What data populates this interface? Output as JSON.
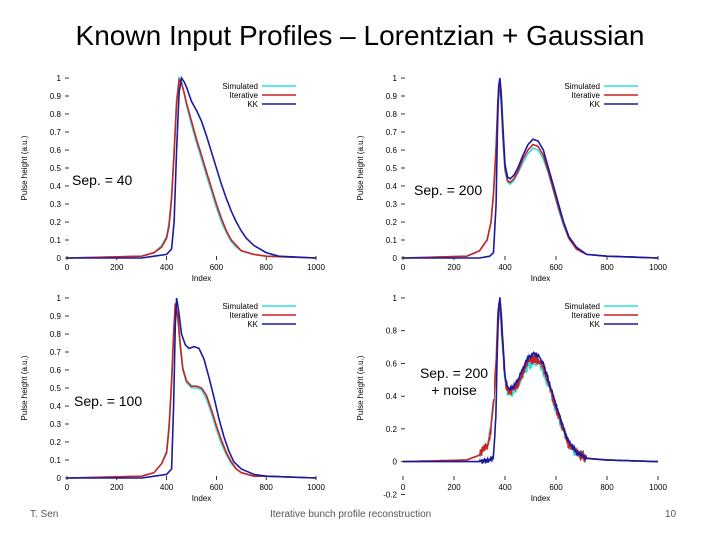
{
  "slide": {
    "title": "Known Input Profiles – Lorentzian + Gaussian",
    "footer_left": "T. Sen",
    "footer_center": "Iterative bunch profile reconstruction",
    "footer_right": "10"
  },
  "chart_data": [
    {
      "type": "line",
      "annotation": "Sep. = 40",
      "xlabel": "Index",
      "ylabel": "Pulse height (a.u.)",
      "xlim": [
        0,
        1000
      ],
      "ylim": [
        0,
        1
      ],
      "xticks": [
        "0",
        "200",
        "400",
        "600",
        "800",
        "1000"
      ],
      "yticks": [
        "0",
        "0.1",
        "0.2",
        "0.3",
        "0.4",
        "0.5",
        "0.6",
        "0.7",
        "0.8",
        "0.9",
        "1"
      ],
      "legend_position": "top-right",
      "noise": false,
      "series": [
        {
          "name": "Simulated",
          "color": "#33dddd",
          "x": [
            0,
            300,
            350,
            380,
            400,
            410,
            420,
            430,
            440,
            450,
            460,
            470,
            480,
            500,
            520,
            540,
            560,
            580,
            600,
            620,
            640,
            660,
            680,
            700,
            750,
            800,
            1000
          ],
          "y": [
            0,
            0.01,
            0.03,
            0.07,
            0.12,
            0.2,
            0.35,
            0.6,
            0.88,
            1,
            0.98,
            0.92,
            0.85,
            0.74,
            0.64,
            0.55,
            0.46,
            0.37,
            0.28,
            0.2,
            0.14,
            0.09,
            0.06,
            0.04,
            0.02,
            0.01,
            0
          ]
        },
        {
          "name": "Iterative",
          "color": "#cc2222",
          "x": [
            0,
            300,
            350,
            380,
            400,
            410,
            420,
            430,
            440,
            450,
            460,
            470,
            480,
            500,
            520,
            540,
            560,
            580,
            600,
            620,
            640,
            660,
            680,
            700,
            750,
            800,
            1000
          ],
          "y": [
            0,
            0.01,
            0.03,
            0.06,
            0.11,
            0.18,
            0.33,
            0.58,
            0.86,
            0.99,
            0.97,
            0.92,
            0.86,
            0.76,
            0.66,
            0.57,
            0.48,
            0.39,
            0.3,
            0.22,
            0.15,
            0.1,
            0.07,
            0.04,
            0.02,
            0.01,
            0
          ]
        },
        {
          "name": "KK",
          "color": "#1a1aa0",
          "x": [
            0,
            300,
            350,
            400,
            420,
            430,
            440,
            450,
            460,
            470,
            480,
            490,
            500,
            520,
            540,
            560,
            580,
            600,
            620,
            640,
            660,
            680,
            700,
            720,
            750,
            800,
            850,
            1000
          ],
          "y": [
            0,
            0,
            0.01,
            0.02,
            0.05,
            0.2,
            0.6,
            0.92,
            1,
            0.98,
            0.95,
            0.91,
            0.87,
            0.82,
            0.76,
            0.68,
            0.59,
            0.5,
            0.41,
            0.33,
            0.26,
            0.2,
            0.15,
            0.11,
            0.07,
            0.03,
            0.01,
            0
          ]
        }
      ]
    },
    {
      "type": "line",
      "annotation": "Sep. = 200",
      "xlabel": "Index",
      "ylabel": "Pulse height (a.u.)",
      "xlim": [
        0,
        1000
      ],
      "ylim": [
        0,
        1
      ],
      "xticks": [
        "0",
        "200",
        "400",
        "600",
        "800",
        "1000"
      ],
      "yticks": [
        "0",
        "0.1",
        "0.2",
        "0.3",
        "0.4",
        "0.5",
        "0.6",
        "0.7",
        "0.8",
        "0.9",
        "1"
      ],
      "legend_position": "top-right",
      "noise": false,
      "series": [
        {
          "name": "Simulated",
          "color": "#33dddd",
          "x": [
            0,
            250,
            300,
            330,
            345,
            355,
            365,
            372,
            378,
            385,
            392,
            400,
            410,
            420,
            435,
            450,
            470,
            490,
            510,
            530,
            550,
            570,
            590,
            610,
            630,
            650,
            680,
            720,
            800,
            1000
          ],
          "y": [
            0,
            0.01,
            0.04,
            0.1,
            0.2,
            0.35,
            0.6,
            0.85,
            0.95,
            0.85,
            0.65,
            0.48,
            0.42,
            0.41,
            0.43,
            0.47,
            0.53,
            0.58,
            0.61,
            0.6,
            0.55,
            0.47,
            0.37,
            0.27,
            0.18,
            0.11,
            0.05,
            0.02,
            0.01,
            0
          ]
        },
        {
          "name": "Iterative",
          "color": "#cc2222",
          "x": [
            0,
            250,
            300,
            330,
            345,
            355,
            365,
            372,
            378,
            385,
            392,
            400,
            410,
            420,
            435,
            450,
            470,
            490,
            510,
            530,
            550,
            570,
            590,
            610,
            630,
            650,
            680,
            720,
            800,
            1000
          ],
          "y": [
            0,
            0.01,
            0.04,
            0.1,
            0.2,
            0.36,
            0.62,
            0.88,
            0.98,
            0.88,
            0.68,
            0.5,
            0.43,
            0.42,
            0.44,
            0.48,
            0.55,
            0.6,
            0.63,
            0.62,
            0.57,
            0.48,
            0.38,
            0.28,
            0.19,
            0.11,
            0.05,
            0.02,
            0.01,
            0
          ]
        },
        {
          "name": "KK",
          "color": "#1a1aa0",
          "x": [
            0,
            300,
            340,
            355,
            365,
            370,
            375,
            380,
            385,
            392,
            400,
            410,
            420,
            435,
            450,
            470,
            490,
            510,
            530,
            550,
            570,
            590,
            610,
            630,
            650,
            680,
            720,
            800,
            1000
          ],
          "y": [
            0,
            0,
            0.01,
            0.03,
            0.3,
            0.7,
            0.95,
            1,
            0.92,
            0.72,
            0.52,
            0.45,
            0.44,
            0.46,
            0.5,
            0.57,
            0.63,
            0.66,
            0.65,
            0.6,
            0.5,
            0.4,
            0.3,
            0.2,
            0.12,
            0.06,
            0.02,
            0.01,
            0
          ]
        }
      ]
    },
    {
      "type": "line",
      "annotation": "Sep. = 100",
      "xlabel": "Index",
      "ylabel": "Pulse height (a.u.)",
      "xlim": [
        0,
        1000
      ],
      "ylim": [
        0,
        1
      ],
      "xticks": [
        "0",
        "200",
        "400",
        "600",
        "800",
        "1000"
      ],
      "yticks": [
        "0",
        "0.1",
        "0.2",
        "0.3",
        "0.4",
        "0.5",
        "0.6",
        "0.7",
        "0.8",
        "0.9",
        "1"
      ],
      "legend_position": "top-right",
      "noise": false,
      "series": [
        {
          "name": "Simulated",
          "color": "#33dddd",
          "x": [
            0,
            300,
            350,
            380,
            400,
            410,
            420,
            428,
            435,
            445,
            455,
            465,
            480,
            500,
            520,
            540,
            560,
            580,
            600,
            620,
            640,
            660,
            680,
            700,
            750,
            800,
            1000
          ],
          "y": [
            0,
            0.01,
            0.03,
            0.08,
            0.15,
            0.3,
            0.55,
            0.8,
            0.95,
            0.88,
            0.72,
            0.6,
            0.53,
            0.5,
            0.5,
            0.49,
            0.44,
            0.36,
            0.27,
            0.19,
            0.13,
            0.08,
            0.05,
            0.03,
            0.01,
            0.01,
            0
          ]
        },
        {
          "name": "Iterative",
          "color": "#cc2222",
          "x": [
            0,
            300,
            350,
            380,
            400,
            410,
            420,
            428,
            435,
            445,
            455,
            465,
            480,
            500,
            520,
            540,
            560,
            580,
            600,
            620,
            640,
            660,
            680,
            700,
            750,
            800,
            1000
          ],
          "y": [
            0,
            0.01,
            0.03,
            0.08,
            0.14,
            0.28,
            0.53,
            0.8,
            0.97,
            0.9,
            0.74,
            0.61,
            0.54,
            0.51,
            0.51,
            0.5,
            0.46,
            0.38,
            0.29,
            0.21,
            0.14,
            0.09,
            0.05,
            0.03,
            0.01,
            0.01,
            0
          ]
        },
        {
          "name": "KK",
          "color": "#1a1aa0",
          "x": [
            0,
            300,
            350,
            400,
            420,
            428,
            435,
            440,
            448,
            460,
            475,
            490,
            510,
            530,
            550,
            570,
            590,
            610,
            630,
            650,
            670,
            700,
            750,
            800,
            1000
          ],
          "y": [
            0,
            0,
            0.01,
            0.02,
            0.05,
            0.4,
            0.85,
            1,
            0.93,
            0.8,
            0.74,
            0.72,
            0.73,
            0.72,
            0.66,
            0.56,
            0.45,
            0.33,
            0.23,
            0.15,
            0.09,
            0.05,
            0.02,
            0.01,
            0
          ]
        }
      ]
    },
    {
      "type": "line",
      "annotation": "Sep. = 200\n+ noise",
      "xlabel": "Index",
      "ylabel": "Pulse height (a.u.)",
      "xlim": [
        0,
        1000
      ],
      "ylim": [
        -0.1,
        1
      ],
      "xticks": [
        "0",
        "200",
        "400",
        "600",
        "800",
        "1000"
      ],
      "yticks": [
        "-0.2",
        "0",
        "0.2",
        "0.4",
        "0.6",
        "0.8",
        "1"
      ],
      "legend_position": "top-right",
      "noise": true,
      "series": [
        {
          "name": "Simulated",
          "color": "#33dddd",
          "x": [
            0,
            250,
            300,
            330,
            345,
            355,
            365,
            372,
            378,
            385,
            392,
            400,
            410,
            420,
            435,
            450,
            470,
            490,
            510,
            530,
            550,
            570,
            590,
            610,
            630,
            650,
            680,
            720,
            800,
            1000
          ],
          "y": [
            0,
            0.01,
            0.04,
            0.1,
            0.2,
            0.35,
            0.6,
            0.85,
            0.95,
            0.85,
            0.65,
            0.48,
            0.42,
            0.41,
            0.43,
            0.47,
            0.53,
            0.58,
            0.61,
            0.6,
            0.55,
            0.47,
            0.37,
            0.27,
            0.18,
            0.11,
            0.05,
            0.02,
            0.01,
            0
          ]
        },
        {
          "name": "Iterative",
          "color": "#cc2222",
          "x": [
            0,
            250,
            300,
            330,
            345,
            355,
            365,
            372,
            378,
            385,
            392,
            400,
            410,
            420,
            435,
            450,
            470,
            490,
            510,
            530,
            550,
            570,
            590,
            610,
            630,
            650,
            680,
            720,
            800,
            1000
          ],
          "y": [
            0,
            0.01,
            0.04,
            0.1,
            0.2,
            0.36,
            0.62,
            0.88,
            0.98,
            0.88,
            0.68,
            0.5,
            0.43,
            0.42,
            0.44,
            0.48,
            0.55,
            0.6,
            0.63,
            0.62,
            0.57,
            0.48,
            0.38,
            0.28,
            0.19,
            0.11,
            0.05,
            0.02,
            0.01,
            0
          ]
        },
        {
          "name": "KK",
          "color": "#1a1aa0",
          "x": [
            0,
            300,
            340,
            355,
            365,
            370,
            375,
            380,
            385,
            392,
            400,
            410,
            420,
            435,
            450,
            470,
            490,
            510,
            530,
            550,
            570,
            590,
            610,
            630,
            650,
            680,
            720,
            800,
            1000
          ],
          "y": [
            0,
            0,
            0.01,
            0.03,
            0.3,
            0.7,
            0.95,
            1,
            0.92,
            0.72,
            0.52,
            0.45,
            0.44,
            0.46,
            0.5,
            0.57,
            0.63,
            0.66,
            0.65,
            0.6,
            0.5,
            0.4,
            0.3,
            0.2,
            0.12,
            0.06,
            0.02,
            0.01,
            0
          ]
        }
      ]
    }
  ]
}
